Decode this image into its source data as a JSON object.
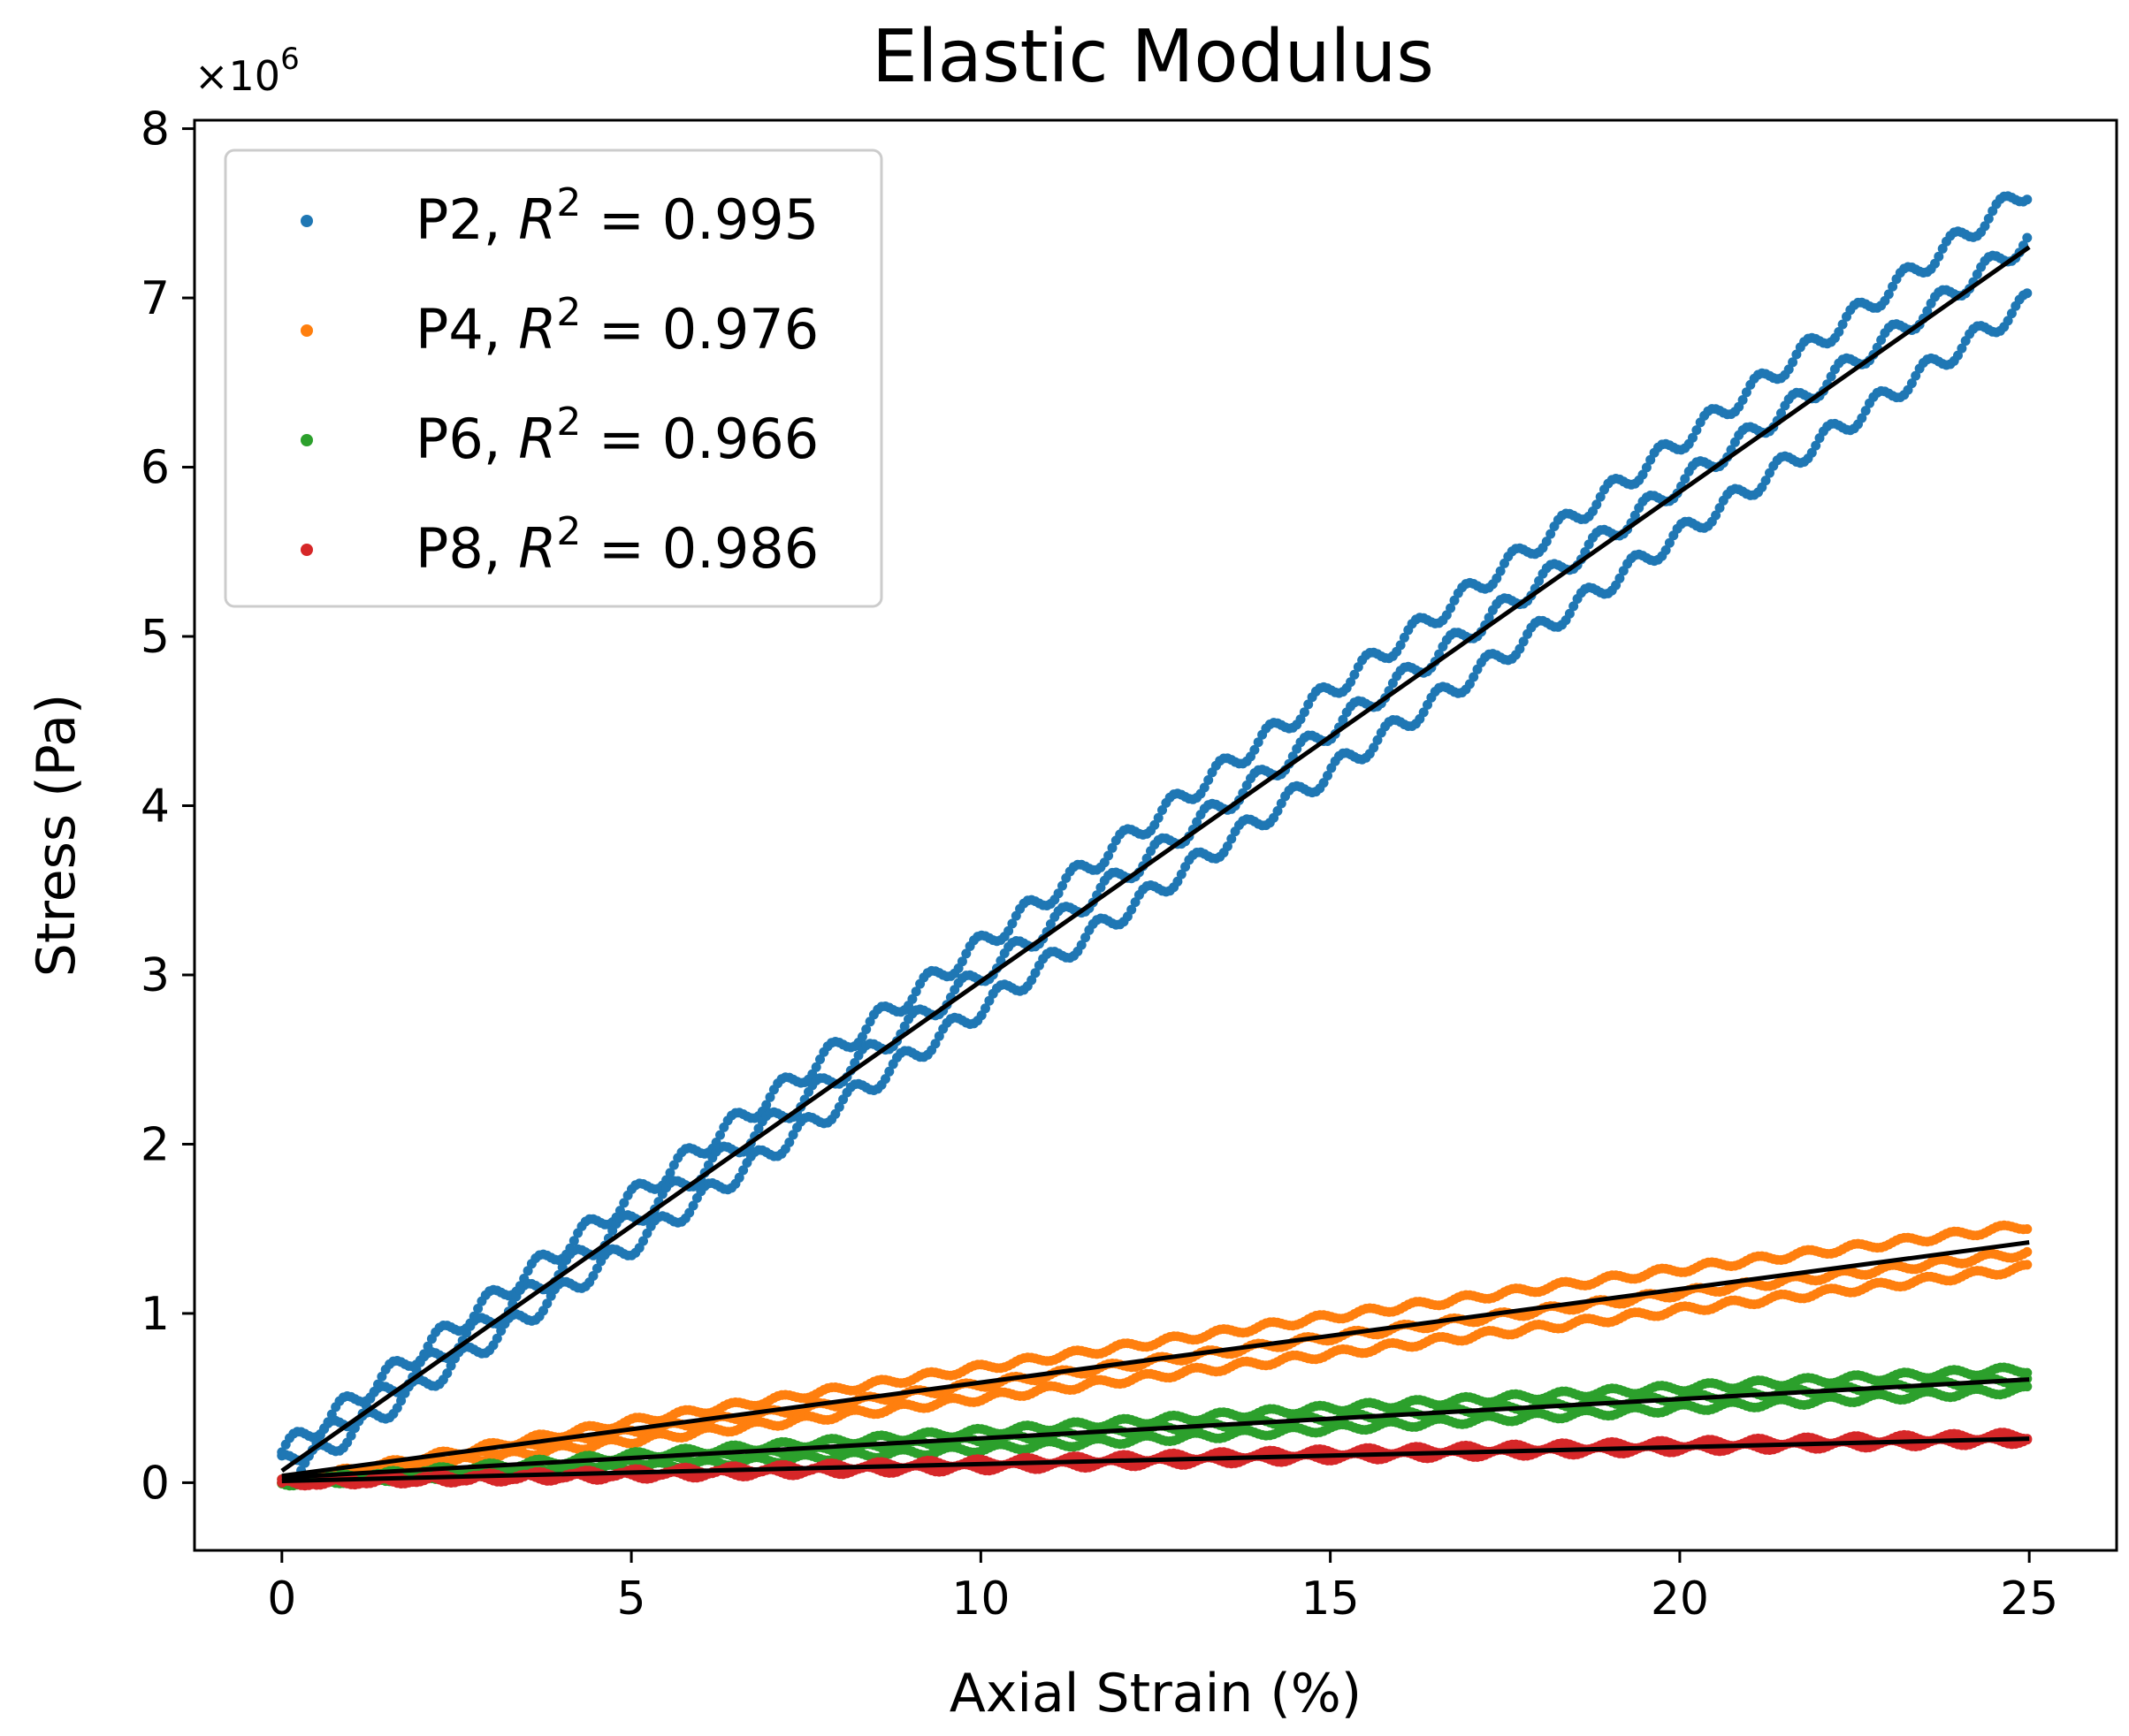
{
  "chart_data": {
    "type": "scatter",
    "title": "Elastic Modulus",
    "xlabel": "Axial Strain (%)",
    "ylabel": "Stress (Pa)",
    "y_offset_label": "×10",
    "y_offset_exponent": "6",
    "xlim": [
      -1.25,
      26.25
    ],
    "ylim": [
      -0.4,
      8.05
    ],
    "xticks": [
      0,
      5,
      10,
      15,
      20,
      25
    ],
    "xtick_labels": [
      "0",
      "5",
      "10",
      "15",
      "20",
      "25"
    ],
    "yticks": [
      0,
      1,
      2,
      3,
      4,
      5,
      6,
      7,
      8
    ],
    "ytick_labels": [
      "0",
      "1",
      "2",
      "3",
      "4",
      "5",
      "6",
      "7",
      "8"
    ],
    "grid": false,
    "legend_position": "top-left",
    "fit_line_color": "#000000",
    "series": [
      {
        "name": "P2",
        "legend_r2_label": "R",
        "legend_r2_value": "= 0.995",
        "color": "#1f77b4",
        "fit": {
          "x": [
            0,
            25
          ],
          "y": [
            0.07,
            7.3
          ]
        },
        "curves": [
          {
            "x": [
              0,
              5,
              10,
              15,
              20,
              25
            ],
            "y": [
              0.18,
              1.68,
              3.18,
              4.68,
              6.15,
              7.65
            ]
          },
          {
            "x": [
              0,
              5,
              10,
              15,
              20,
              25
            ],
            "y": [
              0.1,
              1.55,
              3.0,
              4.45,
              5.9,
              7.35
            ]
          },
          {
            "x": [
              0,
              5,
              10,
              15,
              20,
              25
            ],
            "y": [
              0.02,
              1.4,
              2.8,
              4.2,
              5.6,
              6.98
            ]
          }
        ]
      },
      {
        "name": "P4",
        "legend_r2_label": "R",
        "legend_r2_value": "= 0.976",
        "color": "#ff7f0e",
        "fit": {
          "x": [
            0,
            25
          ],
          "y": [
            0.04,
            1.42
          ]
        },
        "curves": [
          {
            "x": [
              0,
              5,
              10,
              15,
              20,
              25
            ],
            "y": [
              0.0,
              0.36,
              0.68,
              0.98,
              1.26,
              1.52
            ]
          },
          {
            "x": [
              0,
              5,
              10,
              15,
              20,
              25
            ],
            "y": [
              0.0,
              0.3,
              0.58,
              0.86,
              1.12,
              1.36
            ]
          },
          {
            "x": [
              0,
              5,
              10,
              15,
              20,
              25
            ],
            "y": [
              0.0,
              0.25,
              0.5,
              0.76,
              1.02,
              1.27
            ]
          }
        ]
      },
      {
        "name": "P6",
        "legend_r2_label": "R",
        "legend_r2_value": "= 0.966",
        "color": "#2ca02c",
        "fit": {
          "x": [
            0,
            25
          ],
          "y": [
            0.03,
            0.61
          ]
        },
        "curves": [
          {
            "x": [
              0,
              5,
              10,
              15,
              20,
              25
            ],
            "y": [
              0.0,
              0.16,
              0.3,
              0.44,
              0.56,
              0.67
            ]
          },
          {
            "x": [
              0,
              5,
              10,
              15,
              20,
              25
            ],
            "y": [
              0.0,
              0.12,
              0.25,
              0.38,
              0.5,
              0.61
            ]
          },
          {
            "x": [
              0,
              5,
              10,
              15,
              20,
              25
            ],
            "y": [
              0.0,
              0.09,
              0.2,
              0.32,
              0.44,
              0.55
            ]
          }
        ]
      },
      {
        "name": "P8",
        "legend_r2_label": "R",
        "legend_r2_value": "= 0.986",
        "color": "#d62728",
        "fit": {
          "x": [
            0,
            25
          ],
          "y": [
            0.01,
            0.26
          ]
        },
        "curves": [
          {
            "x": [
              0,
              5,
              10,
              15,
              20,
              25
            ],
            "y": [
              0.0,
              0.06,
              0.12,
              0.18,
              0.23,
              0.28
            ]
          },
          {
            "x": [
              0,
              5,
              10,
              15,
              20,
              25
            ],
            "y": [
              0.0,
              0.04,
              0.09,
              0.15,
              0.2,
              0.25
            ]
          }
        ]
      }
    ]
  }
}
